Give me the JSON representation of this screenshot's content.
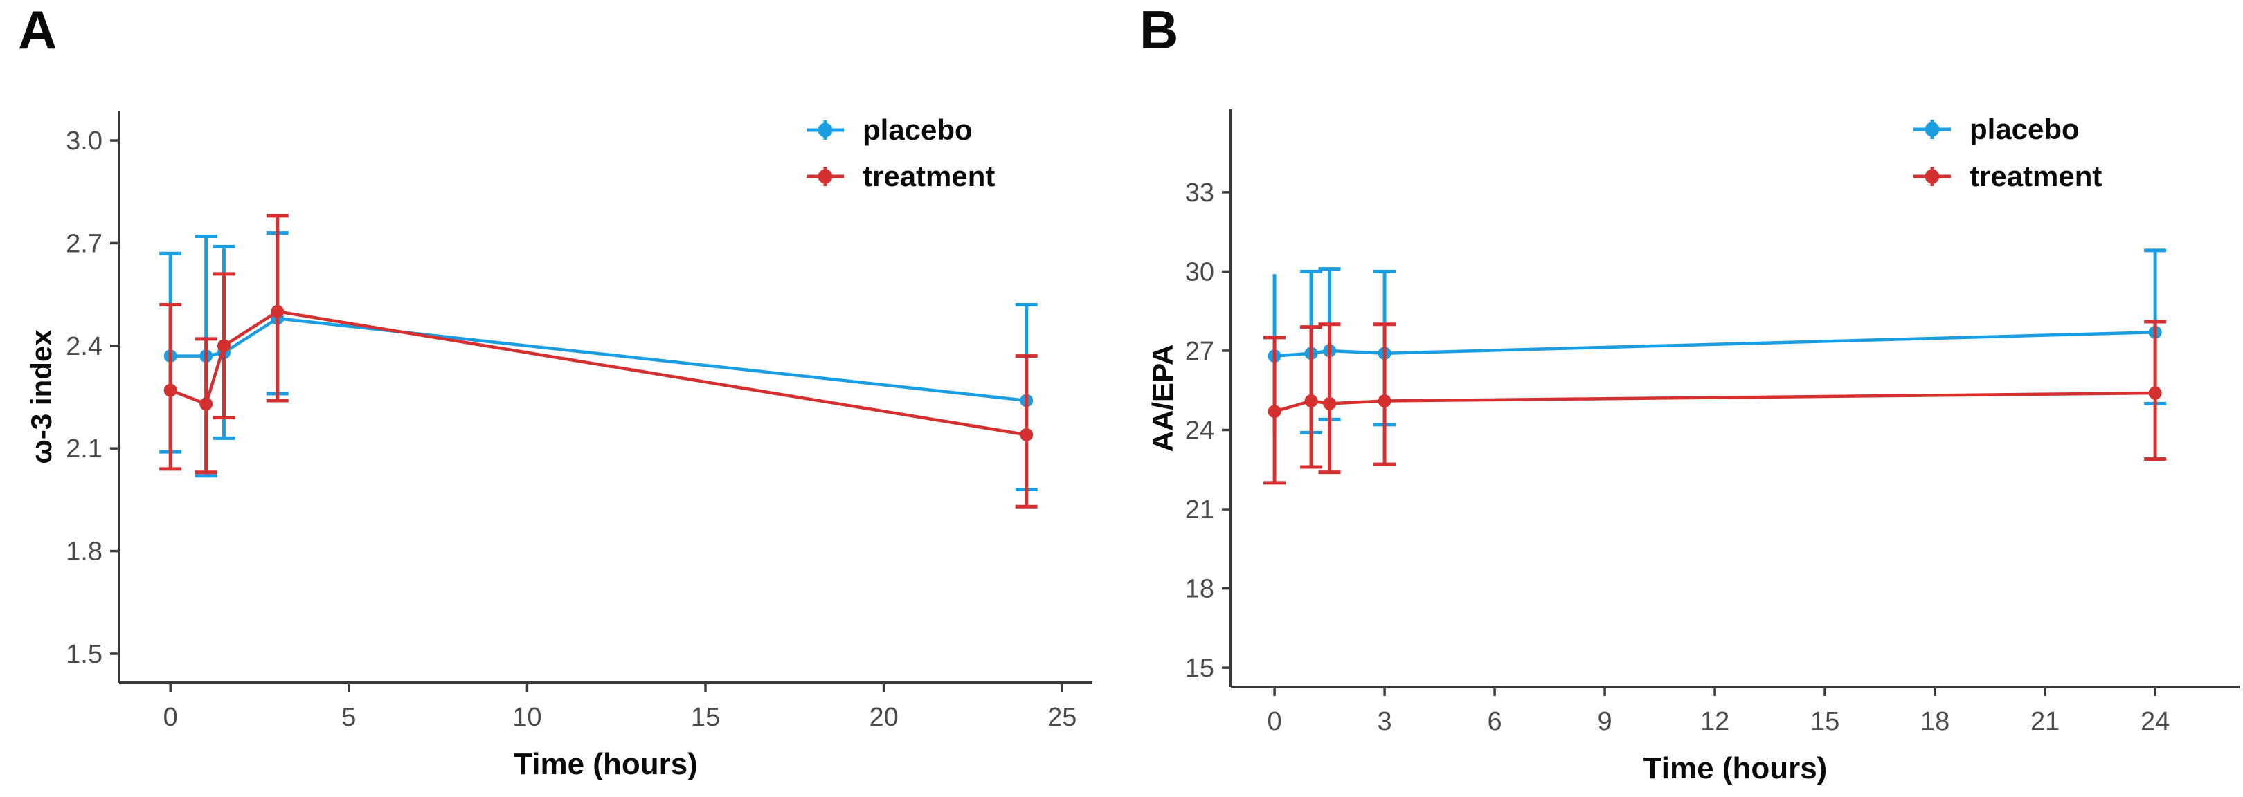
{
  "figure": {
    "background": "#ffffff",
    "axis_color": "#3a3a3a",
    "tick_label_color": "#4a4a4e",
    "text_color": "#0a0a0a",
    "series_colors": {
      "placebo": "#1B9DE2",
      "treatment": "#D53030"
    }
  },
  "chart_data": [
    {
      "type": "line",
      "panel_label": "A",
      "title": "",
      "xlabel": "Time (hours)",
      "ylabel": "ω-3 index",
      "grid": false,
      "legend_position": "top-right-inside",
      "legend": [
        "placebo",
        "treatment"
      ],
      "x": [
        0,
        1,
        1.5,
        3,
        24
      ],
      "xticks": [
        0,
        5,
        10,
        15,
        20,
        25
      ],
      "xtick_labels": [
        "0",
        "5",
        "10",
        "15",
        "20",
        "25"
      ],
      "yticks": [
        3.0,
        2.7,
        2.4,
        2.1,
        1.8,
        1.5
      ],
      "ytick_labels": [
        "3.0",
        "2.7",
        "2.4",
        "2.1",
        "1.8",
        "1.5"
      ],
      "xlim": [
        -1.44,
        25.85
      ],
      "ylim": [
        1.415,
        3.087
      ],
      "series": [
        {
          "name": "placebo",
          "color": "#1B9DE2",
          "values": [
            2.37,
            2.37,
            2.38,
            2.48,
            2.24
          ],
          "err_low": [
            2.09,
            2.02,
            2.13,
            2.26,
            1.98
          ],
          "err_high": [
            2.67,
            2.72,
            2.69,
            2.73,
            2.52
          ],
          "caps_hidden": []
        },
        {
          "name": "treatment",
          "color": "#D53030",
          "values": [
            2.27,
            2.23,
            2.4,
            2.5,
            2.14
          ],
          "err_low": [
            2.04,
            2.03,
            2.19,
            2.24,
            1.93
          ],
          "err_high": [
            2.52,
            2.42,
            2.61,
            2.78,
            2.37
          ],
          "caps_hidden": []
        }
      ]
    },
    {
      "type": "line",
      "panel_label": "B",
      "title": "",
      "xlabel": "Time (hours)",
      "ylabel": "AA/EPA",
      "grid": false,
      "legend_position": "top-right-inside",
      "legend": [
        "placebo",
        "treatment"
      ],
      "x": [
        0,
        1,
        1.5,
        3,
        24
      ],
      "xticks": [
        0,
        3,
        6,
        9,
        12,
        15,
        18,
        21,
        24
      ],
      "xtick_labels": [
        "0",
        "3",
        "6",
        "9",
        "12",
        "15",
        "18",
        "21",
        "24"
      ],
      "yticks": [
        33,
        30,
        27,
        24,
        21,
        18,
        15
      ],
      "ytick_labels": [
        "33",
        "30",
        "27",
        "24",
        "21",
        "18",
        "15"
      ],
      "xlim": [
        -1.19,
        26.3
      ],
      "ylim": [
        14.27,
        36.14
      ],
      "series": [
        {
          "name": "placebo",
          "color": "#1B9DE2",
          "values": [
            26.8,
            26.9,
            27.0,
            26.9,
            27.7
          ],
          "err_low": [
            23.8,
            23.9,
            24.4,
            24.2,
            25.0
          ],
          "err_high": [
            29.9,
            30.0,
            30.1,
            30.0,
            30.8
          ],
          "caps_hidden": [
            0
          ]
        },
        {
          "name": "treatment",
          "color": "#D53030",
          "values": [
            24.7,
            25.1,
            25.0,
            25.1,
            25.4
          ],
          "err_low": [
            22.0,
            22.6,
            22.4,
            22.7,
            22.9
          ],
          "err_high": [
            27.5,
            27.9,
            28.0,
            28.0,
            28.1
          ],
          "caps_hidden": []
        }
      ]
    }
  ]
}
